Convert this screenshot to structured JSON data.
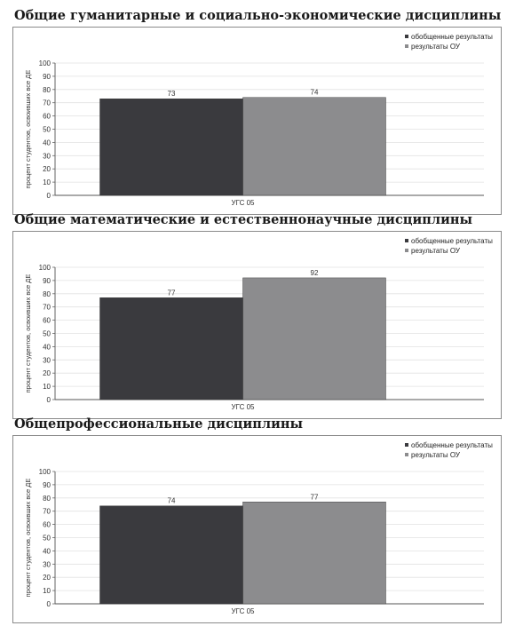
{
  "chart_data": [
    {
      "type": "bar",
      "title": "Общие гуманитарные и социально-экономические дисциплины",
      "ylabel": "процент студентов, освоивших все ДЕ",
      "xlabel": "",
      "categories": [
        "УГС 05"
      ],
      "ylim": [
        0,
        100
      ],
      "yticks": [
        "0",
        "10",
        "20",
        "30",
        "40",
        "50",
        "60",
        "70",
        "80",
        "90",
        "100"
      ],
      "grid": true,
      "legend": "top-right",
      "series": [
        {
          "name": "обобщенные результаты",
          "color": "#3a3a3e",
          "values": [
            73
          ],
          "labels": [
            "73"
          ]
        },
        {
          "name": "результаты ОУ",
          "color": "#8c8c8e",
          "values": [
            74
          ],
          "labels": [
            "74"
          ]
        }
      ]
    },
    {
      "type": "bar",
      "title": "Общие математические и естественнонаучные дисциплины",
      "ylabel": "процент студентов, освоивших все ДЕ",
      "xlabel": "",
      "categories": [
        "УГС 05"
      ],
      "ylim": [
        0,
        100
      ],
      "yticks": [
        "0",
        "10",
        "20",
        "30",
        "40",
        "50",
        "60",
        "70",
        "80",
        "90",
        "100"
      ],
      "grid": true,
      "legend": "top-right",
      "series": [
        {
          "name": "обобщенные результаты",
          "color": "#3a3a3e",
          "values": [
            77
          ],
          "labels": [
            "77"
          ]
        },
        {
          "name": "результаты ОУ",
          "color": "#8c8c8e",
          "values": [
            92
          ],
          "labels": [
            "92"
          ]
        }
      ]
    },
    {
      "type": "bar",
      "title": "Общепрофессиональные дисциплины",
      "ylabel": "процент студентов, освоивших все ДЕ",
      "xlabel": "",
      "categories": [
        "УГС 05"
      ],
      "ylim": [
        0,
        100
      ],
      "yticks": [
        "0",
        "10",
        "20",
        "30",
        "40",
        "50",
        "60",
        "70",
        "80",
        "90",
        "100"
      ],
      "grid": true,
      "legend": "top-right",
      "series": [
        {
          "name": "обобщенные результаты",
          "color": "#3a3a3e",
          "values": [
            74
          ],
          "labels": [
            "74"
          ]
        },
        {
          "name": "результаты ОУ",
          "color": "#8c8c8e",
          "values": [
            77
          ],
          "labels": [
            "77"
          ]
        }
      ]
    }
  ]
}
